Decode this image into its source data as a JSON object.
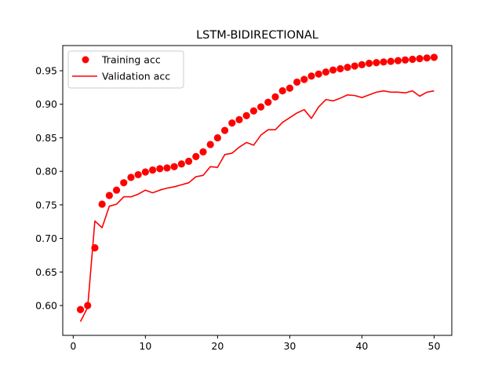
{
  "chart_data": {
    "type": "line",
    "title": "LSTM-BIDIRECTIONAL",
    "xlabel": "",
    "ylabel": "",
    "xlim": [
      -1.45,
      52.45
    ],
    "ylim": [
      0.5555,
      0.9875
    ],
    "xticks": [
      0,
      10,
      20,
      30,
      40,
      50
    ],
    "yticks": [
      0.6,
      0.65,
      0.7,
      0.75,
      0.8,
      0.85,
      0.9,
      0.95
    ],
    "ytick_labels": [
      "0.60",
      "0.65",
      "0.70",
      "0.75",
      "0.80",
      "0.85",
      "0.90",
      "0.95"
    ],
    "grid": false,
    "legend_position": "top-left",
    "x": [
      1,
      2,
      3,
      4,
      5,
      6,
      7,
      8,
      9,
      10,
      11,
      12,
      13,
      14,
      15,
      16,
      17,
      18,
      19,
      20,
      21,
      22,
      23,
      24,
      25,
      26,
      27,
      28,
      29,
      30,
      31,
      32,
      33,
      34,
      35,
      36,
      37,
      38,
      39,
      40,
      41,
      42,
      43,
      44,
      45,
      46,
      47,
      48,
      49,
      50
    ],
    "series": [
      {
        "name": "Training acc",
        "style": "markers",
        "color": "#ff0000",
        "values": [
          0.594,
          0.6,
          0.686,
          0.751,
          0.764,
          0.772,
          0.783,
          0.791,
          0.795,
          0.799,
          0.802,
          0.804,
          0.805,
          0.807,
          0.811,
          0.815,
          0.822,
          0.829,
          0.84,
          0.85,
          0.861,
          0.872,
          0.877,
          0.883,
          0.89,
          0.896,
          0.903,
          0.911,
          0.92,
          0.924,
          0.933,
          0.937,
          0.942,
          0.945,
          0.948,
          0.951,
          0.953,
          0.955,
          0.957,
          0.959,
          0.961,
          0.962,
          0.963,
          0.964,
          0.965,
          0.966,
          0.967,
          0.968,
          0.969,
          0.97
        ]
      },
      {
        "name": "Validation acc",
        "style": "line",
        "color": "#ff0000",
        "values": [
          0.576,
          0.597,
          0.726,
          0.716,
          0.748,
          0.751,
          0.762,
          0.762,
          0.766,
          0.772,
          0.768,
          0.772,
          0.775,
          0.777,
          0.78,
          0.783,
          0.792,
          0.794,
          0.807,
          0.806,
          0.825,
          0.827,
          0.836,
          0.843,
          0.839,
          0.854,
          0.862,
          0.862,
          0.873,
          0.88,
          0.887,
          0.892,
          0.879,
          0.896,
          0.907,
          0.905,
          0.909,
          0.914,
          0.913,
          0.91,
          0.914,
          0.918,
          0.92,
          0.918,
          0.918,
          0.917,
          0.92,
          0.912,
          0.918,
          0.92
        ]
      }
    ]
  }
}
